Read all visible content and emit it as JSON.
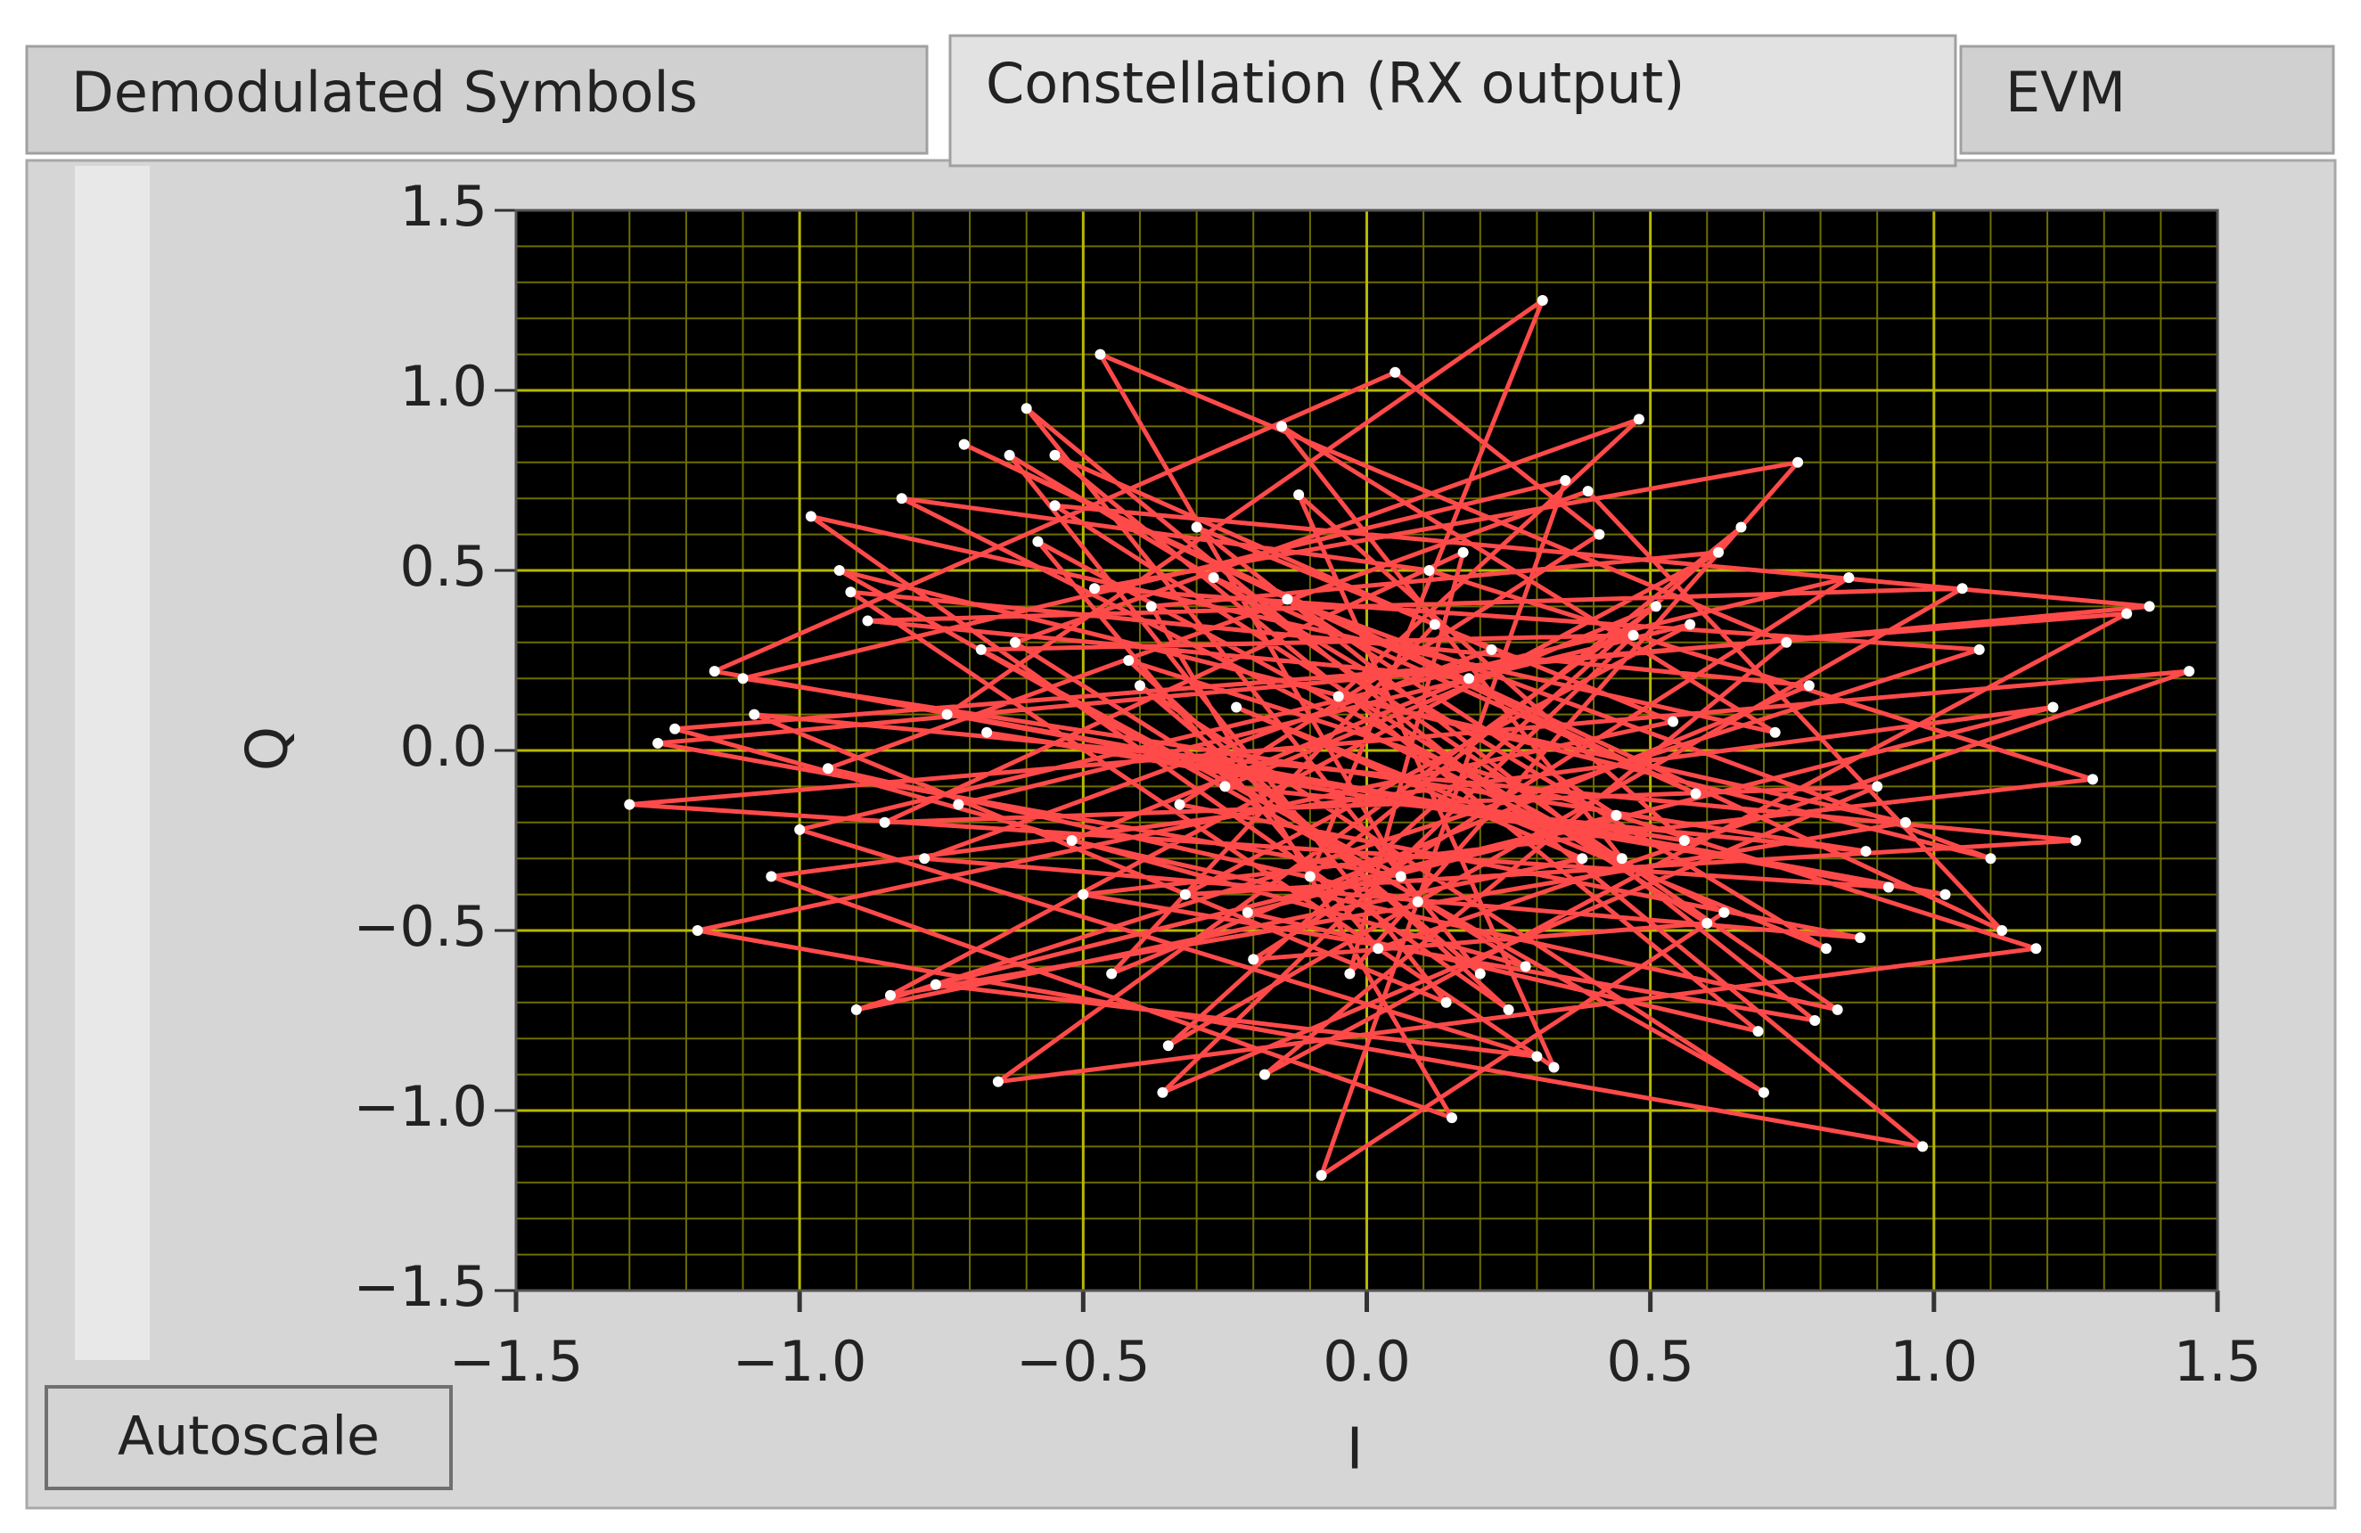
{
  "tabs": [
    "Demodulated Symbols",
    "Constellation (RX output)",
    "EVM"
  ],
  "active_tab": 1,
  "button": "Autoscale",
  "chart_data": {
    "type": "scatter",
    "xlabel": "I",
    "ylabel": "Q",
    "xlim": [
      -1.5,
      1.5
    ],
    "ylim": [
      -1.5,
      1.5
    ],
    "xticks": [
      {
        "value": -1.5,
        "label": "−1.5"
      },
      {
        "value": -1,
        "label": "−1.0"
      },
      {
        "value": -0.5,
        "label": "−0.5"
      },
      {
        "value": 0,
        "label": "0.0"
      },
      0.5,
      {
        "value": 1,
        "label": "1.0"
      },
      1.5
    ],
    "yticks": [
      {
        "value": -1.5,
        "label": "−1.5"
      },
      {
        "value": -1,
        "label": "−1.0"
      },
      {
        "value": -0.5,
        "label": "−0.5"
      },
      {
        "value": 0,
        "label": "0.0"
      },
      0.5,
      {
        "value": 1,
        "label": "1.0"
      },
      1.5
    ],
    "grid": true,
    "minor_per_major": 5,
    "series": [
      {
        "color": "#ff4a4a",
        "marker_color": "#ffffff",
        "line": true,
        "x": [
          0.12,
          -0.45,
          0.78,
          -0.91,
          0.33,
          -0.12,
          0.56,
          -0.67,
          1.02,
          -1.15,
          0.05,
          0.41,
          -0.33,
          0.87,
          -0.78,
          0.22,
          -0.55,
          0.69,
          -0.21,
          1.21,
          -1.05,
          0.15,
          -0.38,
          0.62,
          -0.84,
          0.95,
          -0.05,
          0.48,
          -0.62,
          0.28,
          -1.22,
          1.34,
          -0.18,
          0.74,
          -0.47,
          0.09,
          -0.95,
          0.39,
          1.12,
          -0.71,
          0.58,
          -0.27,
          0.83,
          -0.52,
          0.18,
          -0.88,
          1.05,
          -0.35,
          0.66,
          -0.1,
          0.31,
          -0.74,
          0.92,
          -1.3,
          1.45,
          0.02,
          -0.58,
          0.45,
          -0.15,
          0.72,
          -0.98,
          0.25,
          -0.42,
          1.18,
          -0.65,
          0.51,
          -0.25,
          0.88,
          -1.1,
          0.35,
          -0.08,
          0.63,
          -0.82,
          0.11,
          1.28,
          -0.5,
          0.79,
          -0.3,
          0.54,
          -1.18,
          0.98,
          -0.6,
          0.2,
          -0.4,
          0.7,
          -0.93,
          1.1,
          -0.14,
          0.44,
          -0.76,
          0.3,
          -1.0,
          0.85,
          -0.2,
          0.6,
          -0.55,
          1.38,
          -1.25,
          0.06,
          -0.68,
          0.47,
          -0.36,
          0.9,
          -0.85,
          0.17,
          -0.03,
          0.76,
          -0.48,
          1.08,
          -0.9,
          0.38,
          -0.23,
          0.81,
          -0.63,
          0.14,
          -1.08,
          1.25,
          -0.32,
          0.57,
          -0.72
        ],
        "y": [
          0.35,
          -0.62,
          0.18,
          0.44,
          -0.88,
          0.71,
          -0.25,
          0.05,
          -0.4,
          0.22,
          1.05,
          0.6,
          -0.15,
          -0.52,
          -0.3,
          0.28,
          0.82,
          -0.78,
          -0.45,
          0.12,
          -0.35,
          -1.02,
          0.4,
          0.55,
          -0.68,
          -0.2,
          0.15,
          0.92,
          0.3,
          -0.6,
          0.06,
          0.38,
          -0.9,
          0.3,
          1.1,
          -0.42,
          -0.05,
          0.72,
          -0.5,
          0.85,
          -0.12,
          0.48,
          -0.72,
          -0.25,
          0.2,
          0.36,
          0.45,
          -0.82,
          0.62,
          -0.35,
          1.25,
          0.1,
          -0.38,
          -0.15,
          0.22,
          -0.55,
          0.58,
          -0.3,
          0.9,
          0.05,
          0.65,
          -0.72,
          0.25,
          -0.55,
          -0.92,
          0.4,
          -0.1,
          -0.28,
          0.2,
          0.75,
          -1.18,
          -0.45,
          0.7,
          0.5,
          -0.08,
          -0.4,
          -0.75,
          0.62,
          0.08,
          -0.5,
          -1.1,
          0.95,
          -0.62,
          0.18,
          -0.95,
          0.5,
          -0.3,
          0.42,
          -0.18,
          -0.65,
          -0.85,
          -0.22,
          0.48,
          -0.58,
          -0.48,
          0.68,
          0.4,
          0.02,
          -0.35,
          0.28,
          0.32,
          -0.95,
          -0.1,
          -0.2,
          0.55,
          -0.62,
          0.8,
          0.45,
          0.28,
          -0.72,
          -0.3,
          0.12,
          -0.55,
          0.82,
          -0.7,
          0.1,
          -0.25,
          -0.4,
          0.35,
          -0.15
        ]
      }
    ]
  }
}
